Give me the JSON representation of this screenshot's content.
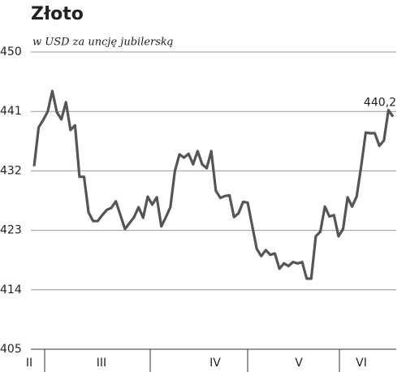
{
  "chart_data": {
    "type": "line",
    "title": "Złoto",
    "subtitle": "w USD za uncję jubilerską",
    "x_labels": [
      "II",
      "III",
      "IV",
      "V",
      "VI"
    ],
    "series": [
      {
        "name": null,
        "color": "#555555",
        "values": [
          432.7,
          438.6,
          439.7,
          441.0,
          444.1,
          440.9,
          439.8,
          442.4,
          438.2,
          438.9,
          431.1,
          431.1,
          425.7,
          424.4,
          424.4,
          425.3,
          426.1,
          426.4,
          427.4,
          425.3,
          423.2,
          424.1,
          425.0,
          426.5,
          424.9,
          428.1,
          426.9,
          428.0,
          423.6,
          425.0,
          426.5,
          432.0,
          434.5,
          434.0,
          434.6,
          433.0,
          435.0,
          433.0,
          432.4,
          435.0,
          429.0,
          427.9,
          428.2,
          428.3,
          425.0,
          425.6,
          427.3,
          427.2,
          423.7,
          420.2,
          419.1,
          420.0,
          419.3,
          419.5,
          417.2,
          418.0,
          417.6,
          418.2,
          418.0,
          418.2,
          415.7,
          415.7,
          422.1,
          422.8,
          426.6,
          425.1,
          425.3,
          422.1,
          423.2,
          428.0,
          426.6,
          428.1,
          432.7,
          437.8,
          437.7,
          437.7,
          435.8,
          436.6,
          441.2,
          440.2
        ],
        "value_labels": [
          null,
          null,
          null,
          null,
          null,
          null,
          null,
          null,
          null,
          null,
          null,
          null,
          null,
          null,
          null,
          null,
          null,
          null,
          null,
          null,
          null,
          null,
          null,
          null,
          null,
          null,
          null,
          null,
          null,
          null,
          null,
          null,
          null,
          null,
          null,
          null,
          null,
          null,
          null,
          null,
          null,
          null,
          null,
          null,
          null,
          null,
          null,
          null,
          null,
          null,
          null,
          null,
          null,
          null,
          null,
          null,
          null,
          null,
          null,
          null,
          null,
          null,
          null,
          null,
          null,
          null,
          null,
          null,
          null,
          null,
          null,
          null,
          null,
          null,
          null,
          null,
          null,
          null,
          null,
          "440,2"
        ]
      }
    ],
    "ylim": [
      405,
      450
    ],
    "yticks": [
      405,
      414,
      423,
      432,
      441,
      450
    ],
    "grid": true
  }
}
